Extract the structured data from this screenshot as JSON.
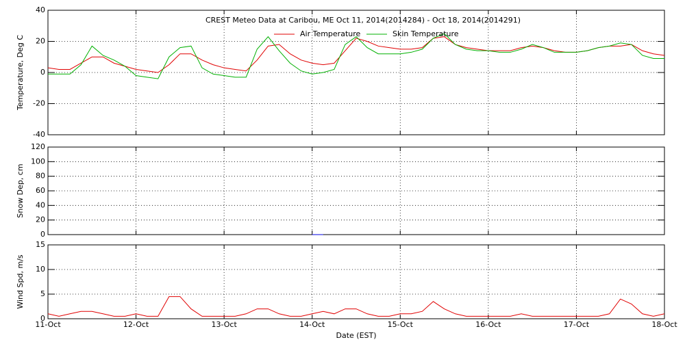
{
  "chart_data": [
    {
      "type": "line",
      "title": "CREST Meteo Data at Caribou, ME   Oct 11, 2014(2014284) - Oct 18, 2014(2014291)",
      "ylabel": "Temperature, Deg C",
      "grid": true,
      "x": [
        0,
        0.125,
        0.25,
        0.375,
        0.5,
        0.625,
        0.75,
        0.875,
        1,
        1.125,
        1.25,
        1.375,
        1.5,
        1.625,
        1.75,
        1.875,
        2,
        2.125,
        2.25,
        2.375,
        2.5,
        2.625,
        2.75,
        2.875,
        3,
        3.125,
        3.25,
        3.375,
        3.5,
        3.625,
        3.75,
        3.875,
        4,
        4.125,
        4.25,
        4.375,
        4.5,
        4.625,
        4.75,
        4.875,
        5,
        5.125,
        5.25,
        5.375,
        5.5,
        5.625,
        5.75,
        5.875,
        6,
        6.125,
        6.25,
        6.375,
        6.5,
        6.625,
        6.75,
        6.875,
        7
      ],
      "xlim": [
        0,
        7
      ],
      "ylim": [
        -40,
        40
      ],
      "yticks": [
        -40,
        -20,
        0,
        20,
        40
      ],
      "series": [
        {
          "name": "Air Temperature",
          "color": "#e00000",
          "values": [
            3,
            2,
            2,
            6,
            10,
            10,
            6,
            4,
            2,
            1,
            0,
            5,
            12,
            12,
            8,
            5,
            3,
            2,
            1,
            8,
            17,
            18,
            12,
            8,
            6,
            5,
            6,
            14,
            22,
            20,
            17,
            16,
            15,
            15,
            16,
            22,
            23,
            18,
            16,
            15,
            14,
            14,
            14,
            16,
            17,
            16,
            14,
            13,
            13,
            14,
            16,
            17,
            17,
            18,
            14,
            12,
            11
          ]
        },
        {
          "name": "Skin Temperature",
          "color": "#00b000",
          "values": [
            -1,
            -1,
            -1,
            5,
            17,
            11,
            8,
            4,
            -2,
            -3,
            -4,
            10,
            16,
            17,
            3,
            -1,
            -2,
            -3,
            -3,
            15,
            23,
            14,
            6,
            1,
            -1,
            0,
            2,
            18,
            23,
            16,
            12,
            12,
            12,
            13,
            15,
            22,
            25,
            18,
            15,
            14,
            14,
            13,
            13,
            15,
            18,
            16,
            13,
            13,
            13,
            14,
            16,
            17,
            19,
            18,
            11,
            9,
            9
          ]
        }
      ]
    },
    {
      "type": "line",
      "ylabel": "Snow Dep, cm",
      "grid": true,
      "x": [
        0,
        0.125,
        0.25,
        0.375,
        0.5,
        0.625,
        0.75,
        0.875,
        1,
        1.125,
        1.25,
        1.375,
        1.5,
        1.625,
        1.75,
        1.875,
        2,
        2.125,
        2.25,
        2.375,
        2.5,
        2.625,
        2.75,
        2.875,
        3,
        3.125,
        3.25,
        3.375,
        3.5,
        3.625,
        3.75,
        3.875,
        4,
        4.125,
        4.25,
        4.375,
        4.5,
        4.625,
        4.75,
        4.875,
        5,
        5.125,
        5.25,
        5.375,
        5.5,
        5.625,
        5.75,
        5.875,
        6,
        6.125,
        6.25,
        6.375,
        6.5,
        6.625,
        6.75,
        6.875,
        7
      ],
      "xlim": [
        0,
        7
      ],
      "ylim": [
        0,
        120
      ],
      "yticks": [
        0,
        20,
        40,
        60,
        80,
        100,
        120
      ],
      "series": [
        {
          "color": "#0000e0",
          "values": [
            null,
            null,
            null,
            null,
            null,
            null,
            null,
            null,
            null,
            null,
            null,
            null,
            null,
            null,
            null,
            null,
            null,
            null,
            null,
            null,
            null,
            null,
            null,
            null,
            0,
            0,
            null,
            null,
            null,
            null,
            null,
            null,
            null,
            null,
            null,
            null,
            null,
            null,
            null,
            null,
            null,
            null,
            null,
            null,
            null,
            null,
            null,
            null,
            null,
            null,
            null,
            null,
            null,
            null,
            null,
            null,
            null
          ]
        }
      ]
    },
    {
      "type": "line",
      "ylabel": "Wind Spd, m/s",
      "xlabel": "Date (EST)",
      "grid": true,
      "x": [
        0,
        0.125,
        0.25,
        0.375,
        0.5,
        0.625,
        0.75,
        0.875,
        1,
        1.125,
        1.25,
        1.375,
        1.5,
        1.625,
        1.75,
        1.875,
        2,
        2.125,
        2.25,
        2.375,
        2.5,
        2.625,
        2.75,
        2.875,
        3,
        3.125,
        3.25,
        3.375,
        3.5,
        3.625,
        3.75,
        3.875,
        4,
        4.125,
        4.25,
        4.375,
        4.5,
        4.625,
        4.75,
        4.875,
        5,
        5.125,
        5.25,
        5.375,
        5.5,
        5.625,
        5.75,
        5.875,
        6,
        6.125,
        6.25,
        6.375,
        6.5,
        6.625,
        6.75,
        6.875,
        7
      ],
      "xlim": [
        0,
        7
      ],
      "ylim": [
        0,
        15
      ],
      "yticks": [
        0,
        5,
        10,
        15
      ],
      "xticks": [
        {
          "value": 0,
          "label": "11-Oct"
        },
        {
          "value": 1,
          "label": "12-Oct"
        },
        {
          "value": 2,
          "label": "13-Oct"
        },
        {
          "value": 3,
          "label": "14-Oct"
        },
        {
          "value": 4,
          "label": "15-Oct"
        },
        {
          "value": 5,
          "label": "16-Oct"
        },
        {
          "value": 6,
          "label": "17-Oct"
        },
        {
          "value": 7,
          "label": "18-Oct"
        }
      ],
      "series": [
        {
          "color": "#e00000",
          "values": [
            1,
            0.5,
            1,
            1.5,
            1.5,
            1,
            0.5,
            0.5,
            1,
            0.5,
            0.5,
            4.5,
            4.5,
            2,
            0.5,
            0.5,
            0.5,
            0.5,
            1,
            2,
            2,
            1,
            0.5,
            0.5,
            1,
            1.5,
            1,
            2,
            2,
            1,
            0.5,
            0.5,
            1,
            1,
            1.5,
            3.5,
            2,
            1,
            0.5,
            0.5,
            0.5,
            0.5,
            0.5,
            1,
            0.5,
            0.5,
            0.5,
            0.5,
            0.5,
            0.5,
            0.5,
            1,
            4,
            3,
            1,
            0.5,
            1
          ]
        }
      ]
    }
  ]
}
